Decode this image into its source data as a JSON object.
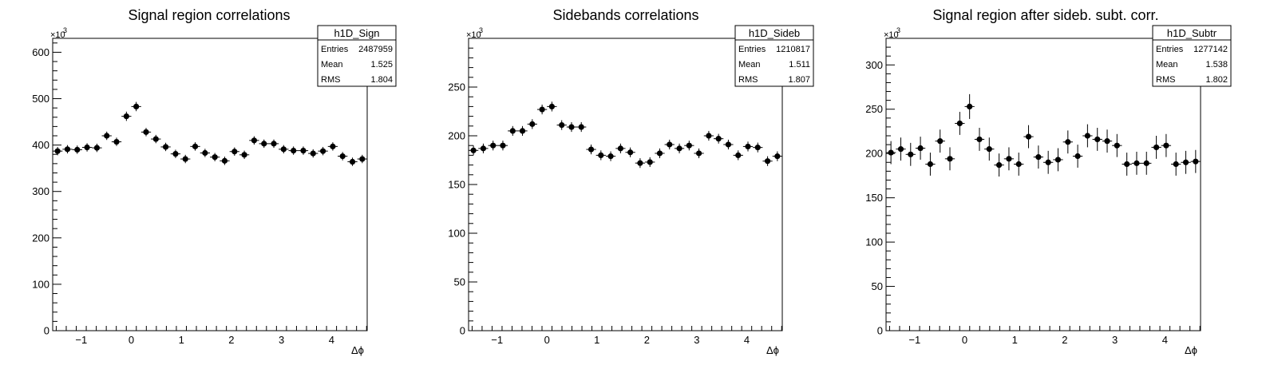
{
  "chart_data": [
    {
      "type": "scatter",
      "title": "Signal region correlations",
      "xlabel": "Δϕ",
      "ylabel": "",
      "y_multiplier_label": "×10",
      "y_multiplier_exp": "3",
      "xlim": [
        -1.5708,
        4.7124
      ],
      "ylim": [
        0,
        630
      ],
      "xticks": [
        -1,
        0,
        1,
        2,
        3,
        4
      ],
      "yticks": [
        0,
        100,
        200,
        300,
        400,
        500,
        600
      ],
      "x_bin_width": 0.19635,
      "stats": {
        "name": "h1D_Sign",
        "rows": [
          [
            "Entries",
            "2487959"
          ],
          [
            "Mean",
            "1.525"
          ],
          [
            "RMS",
            "1.804"
          ]
        ]
      },
      "series": [
        {
          "x": [
            -1.473,
            -1.276,
            -1.08,
            -0.884,
            -0.687,
            -0.491,
            -0.295,
            -0.098,
            0.098,
            0.295,
            0.491,
            0.687,
            0.884,
            1.08,
            1.276,
            1.473,
            1.669,
            1.865,
            2.062,
            2.258,
            2.454,
            2.651,
            2.847,
            3.043,
            3.24,
            3.436,
            3.632,
            3.829,
            4.025,
            4.221,
            4.418,
            4.614
          ],
          "y": [
            387,
            391,
            390,
            395,
            394,
            420,
            407,
            462,
            483,
            428,
            413,
            396,
            381,
            370,
            397,
            383,
            374,
            366,
            386,
            379,
            410,
            403,
            403,
            391,
            388,
            388,
            382,
            387,
            397,
            376,
            364,
            370
          ],
          "yerr": [
            9,
            9,
            9,
            9,
            9,
            9,
            9,
            10,
            10,
            9,
            9,
            9,
            9,
            9,
            9,
            9,
            9,
            9,
            9,
            9,
            9,
            9,
            9,
            9,
            9,
            9,
            9,
            9,
            9,
            9,
            9,
            9
          ]
        }
      ]
    },
    {
      "type": "scatter",
      "title": "Sidebands correlations",
      "xlabel": "Δϕ",
      "ylabel": "",
      "y_multiplier_label": "×10",
      "y_multiplier_exp": "3",
      "xlim": [
        -1.5708,
        4.7124
      ],
      "ylim": [
        0,
        300
      ],
      "xticks": [
        -1,
        0,
        1,
        2,
        3,
        4
      ],
      "yticks": [
        0,
        50,
        100,
        150,
        200,
        250
      ],
      "x_bin_width": 0.19635,
      "stats": {
        "name": "h1D_Sideb",
        "rows": [
          [
            "Entries",
            "1210817"
          ],
          [
            "Mean",
            "1.511"
          ],
          [
            "RMS",
            "1.807"
          ]
        ]
      },
      "series": [
        {
          "x": [
            -1.473,
            -1.276,
            -1.08,
            -0.884,
            -0.687,
            -0.491,
            -0.295,
            -0.098,
            0.098,
            0.295,
            0.491,
            0.687,
            0.884,
            1.08,
            1.276,
            1.473,
            1.669,
            1.865,
            2.062,
            2.258,
            2.454,
            2.651,
            2.847,
            3.043,
            3.24,
            3.436,
            3.632,
            3.829,
            4.025,
            4.221,
            4.418,
            4.614
          ],
          "y": [
            185,
            187,
            190,
            190,
            205,
            205,
            212,
            227,
            230,
            211,
            209,
            209,
            186,
            180,
            179,
            187,
            183,
            172,
            173,
            182,
            191,
            187,
            190,
            182,
            200,
            197,
            191,
            180,
            189,
            188,
            174,
            179
          ],
          "yerr": [
            5,
            5,
            5,
            5,
            5,
            5,
            5,
            5,
            5,
            5,
            5,
            5,
            5,
            5,
            5,
            5,
            5,
            5,
            5,
            5,
            5,
            5,
            5,
            5,
            5,
            5,
            5,
            5,
            5,
            5,
            5,
            5
          ]
        }
      ]
    },
    {
      "type": "scatter",
      "title": "Signal region after sideb. subt. corr.",
      "xlabel": "Δϕ",
      "ylabel": "",
      "y_multiplier_label": "×10",
      "y_multiplier_exp": "3",
      "xlim": [
        -1.5708,
        4.7124
      ],
      "ylim": [
        0,
        330
      ],
      "xticks": [
        -1,
        0,
        1,
        2,
        3,
        4
      ],
      "yticks": [
        0,
        50,
        100,
        150,
        200,
        250,
        300
      ],
      "x_bin_width": 0.19635,
      "stats": {
        "name": "h1D_Subtr",
        "rows": [
          [
            "Entries",
            "1277142"
          ],
          [
            "Mean",
            "1.538"
          ],
          [
            "RMS",
            "1.802"
          ]
        ]
      },
      "series": [
        {
          "x": [
            -1.473,
            -1.276,
            -1.08,
            -0.884,
            -0.687,
            -0.491,
            -0.295,
            -0.098,
            0.098,
            0.295,
            0.491,
            0.687,
            0.884,
            1.08,
            1.276,
            1.473,
            1.669,
            1.865,
            2.062,
            2.258,
            2.454,
            2.651,
            2.847,
            3.043,
            3.24,
            3.436,
            3.632,
            3.829,
            4.025,
            4.221,
            4.418,
            4.614
          ],
          "y": [
            201,
            205,
            199,
            206,
            188,
            214,
            194,
            234,
            253,
            216,
            205,
            187,
            194,
            188,
            219,
            196,
            190,
            193,
            213,
            197,
            220,
            216,
            214,
            209,
            188,
            189,
            189,
            207,
            209,
            188,
            190,
            191
          ],
          "yerr": [
            13,
            13,
            13,
            13,
            13,
            13,
            13,
            13,
            14,
            13,
            13,
            13,
            13,
            13,
            13,
            13,
            13,
            13,
            13,
            13,
            13,
            13,
            13,
            13,
            13,
            13,
            13,
            13,
            13,
            13,
            13,
            13
          ]
        }
      ]
    }
  ]
}
